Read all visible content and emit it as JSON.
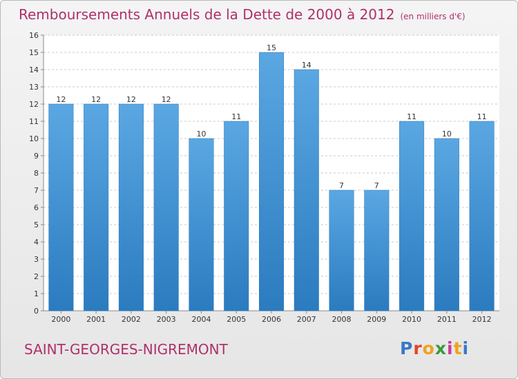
{
  "header": {
    "title": "Remboursements Annuels de la Dette de 2000 à 2012",
    "unit": "(en milliers d'€)"
  },
  "footer": {
    "commune": "SAINT-GEORGES-NIGREMONT",
    "logo_letters": [
      "P",
      "r",
      "o",
      "x",
      "i",
      "t",
      "i"
    ],
    "logo_colors": [
      "#3a78c8",
      "#e1452a",
      "#f0a21e",
      "#3a9a3a",
      "#c83a9a",
      "#f0a21e",
      "#3a78c8"
    ]
  },
  "colors": {
    "bar_fill": "#5aa7e2",
    "bar_edge": "#2b7bbf",
    "grid": "#c8c8c8",
    "axis": "#888888"
  },
  "chart_data": {
    "type": "bar",
    "title": "Remboursements Annuels de la Dette de 2000 à 2012",
    "xlabel": "",
    "ylabel": "",
    "categories": [
      "2000",
      "2001",
      "2002",
      "2003",
      "2004",
      "2005",
      "2006",
      "2007",
      "2008",
      "2009",
      "2010",
      "2011",
      "2012"
    ],
    "values": [
      12,
      12,
      12,
      12,
      10,
      11,
      15,
      14,
      7,
      7,
      11,
      10,
      11
    ],
    "value_labels": [
      "12",
      "12",
      "12",
      "12",
      "10",
      "11",
      "15",
      "14",
      "7",
      "7",
      "11",
      "10",
      "11"
    ],
    "ylim": [
      0,
      16
    ],
    "yticks": [
      0,
      1,
      2,
      3,
      4,
      5,
      6,
      7,
      8,
      9,
      10,
      11,
      12,
      13,
      14,
      15,
      16
    ],
    "grid": true
  }
}
